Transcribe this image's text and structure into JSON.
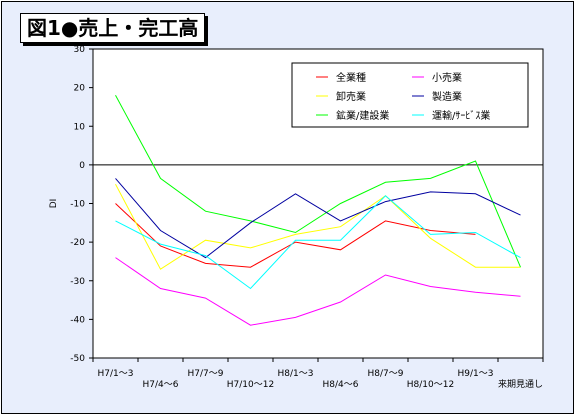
{
  "figure_title": "図1●売上・完工高",
  "chart_data": {
    "type": "line",
    "title": "",
    "ylabel": "DI",
    "xlabel": "",
    "ylim": [
      -50,
      30
    ],
    "yticks": [
      30,
      20,
      10,
      0,
      -10,
      -20,
      -30,
      -40,
      -50
    ],
    "categories": [
      "H7/1～3",
      "H7/4～6",
      "H7/7～9",
      "H7/10～12",
      "H8/1～3",
      "H8/4～6",
      "H8/7～9",
      "H8/10～12",
      "H9/1～3",
      "来期見通し"
    ],
    "grid": false,
    "zero_line": true,
    "legend_position": "top-right",
    "series": [
      {
        "name": "全業種",
        "color": "#ff0000",
        "values": [
          -10,
          -21,
          -25.5,
          -26.5,
          -20,
          -22,
          -14.5,
          -17,
          -18,
          null
        ]
      },
      {
        "name": "卸売業",
        "color": "#ffff00",
        "values": [
          -5,
          -27,
          -19.5,
          -21.5,
          -18,
          -16,
          -8,
          -19,
          -26.5,
          -26.5
        ]
      },
      {
        "name": "鉱業/建設業",
        "color": "#00ff00",
        "values": [
          18,
          -3.5,
          -12,
          -14.5,
          -17.5,
          -10,
          -4.5,
          -3.5,
          1,
          -26.5
        ]
      },
      {
        "name": "小売業",
        "color": "#ff00ff",
        "values": [
          -24,
          -32,
          -34.5,
          -41.5,
          -39.5,
          -35.5,
          -28.5,
          -31.5,
          -33,
          -34
        ]
      },
      {
        "name": "製造業",
        "color": "#0000a0",
        "values": [
          -3.5,
          -17,
          -24,
          -15,
          -7.5,
          -14.5,
          -9.5,
          -7,
          -7.5,
          -13
        ]
      },
      {
        "name": "運輸/ｻｰﾋﾞｽ業",
        "color": "#00ffff",
        "values": [
          -14.5,
          -20.5,
          -23.5,
          -32,
          -19.5,
          -19.5,
          -8,
          -18,
          -17.5,
          -24
        ]
      }
    ]
  }
}
